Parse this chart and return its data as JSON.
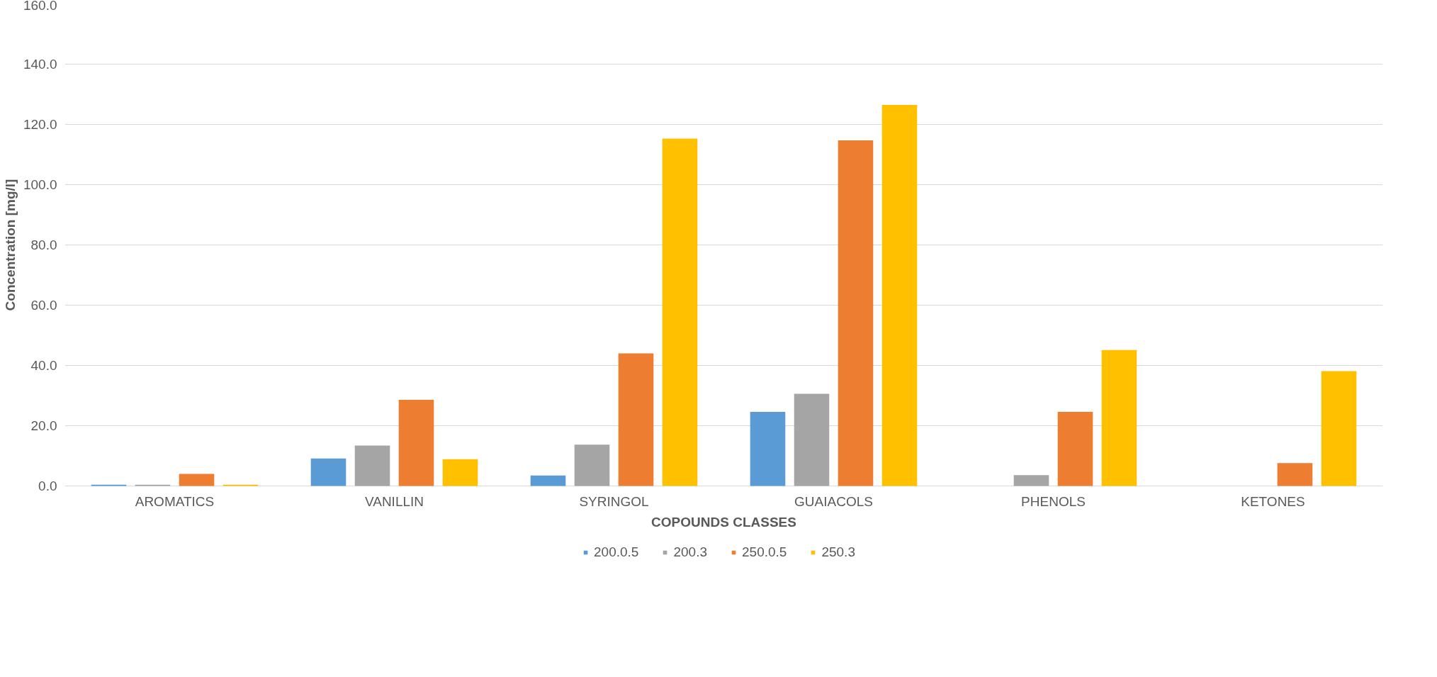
{
  "chart_data": {
    "type": "bar",
    "xlabel": "COPOUNDS CLASSES",
    "ylabel": "Concentration [mg/l]",
    "categories": [
      "AROMATICS",
      "VANILLIN",
      "SYRINGOL",
      "GUAIACOLS",
      "PHENOLS",
      "KETONES"
    ],
    "series": [
      {
        "name": "200.0.5",
        "color": "#5b9bd5",
        "values": [
          0.4,
          9.1,
          3.5,
          24.6,
          null,
          null
        ]
      },
      {
        "name": "200.3",
        "color": "#a5a5a5",
        "values": [
          0.4,
          13.4,
          13.7,
          30.6,
          3.6,
          null
        ]
      },
      {
        "name": "250.0.5",
        "color": "#ed7d31",
        "values": [
          4.0,
          28.6,
          44.0,
          114.7,
          24.6,
          7.6
        ]
      },
      {
        "name": "250.3",
        "color": "#ffc000",
        "values": [
          0.4,
          8.9,
          115.3,
          126.5,
          45.1,
          38.1
        ]
      }
    ],
    "ylim": [
      0,
      160
    ],
    "yticks": [
      {
        "value": 0,
        "label": "0.0"
      },
      {
        "value": 20,
        "label": "20.0"
      },
      {
        "value": 40,
        "label": "40.0"
      },
      {
        "value": 60,
        "label": "60.0"
      },
      {
        "value": 80,
        "label": "80.0"
      },
      {
        "value": 100,
        "label": "100.0"
      },
      {
        "value": 120,
        "label": "120.0"
      },
      {
        "value": 140,
        "label": "140.0"
      },
      {
        "value": 160,
        "label": "160.0"
      }
    ],
    "grid": "y",
    "legend": "bottom"
  }
}
